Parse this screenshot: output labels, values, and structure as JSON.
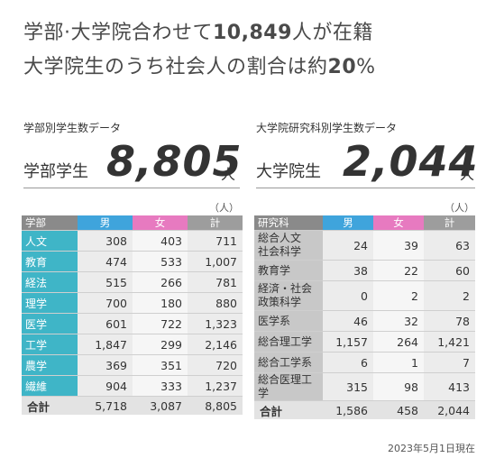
{
  "headline": {
    "line1_a": "学部·大学院合わせて",
    "line1_num": "10,849",
    "line1_b": "人が在籍",
    "line2_a": "大学院生のうち社会人の割合は約",
    "line2_num": "20",
    "line2_pct": "%"
  },
  "undergrad": {
    "title": "学部別学生数データ",
    "big_label": "学部学生",
    "big_number": "8,805",
    "big_unit": "人",
    "unit_note": "（人）",
    "headers": [
      "学部",
      "男",
      "女",
      "計"
    ],
    "rows": [
      {
        "name": "人文",
        "m": "308",
        "f": "403",
        "t": "711"
      },
      {
        "name": "教育",
        "m": "474",
        "f": "533",
        "t": "1,007"
      },
      {
        "name": "経法",
        "m": "515",
        "f": "266",
        "t": "781"
      },
      {
        "name": "理学",
        "m": "700",
        "f": "180",
        "t": "880"
      },
      {
        "name": "医学",
        "m": "601",
        "f": "722",
        "t": "1,323"
      },
      {
        "name": "工学",
        "m": "1,847",
        "f": "299",
        "t": "2,146"
      },
      {
        "name": "農学",
        "m": "369",
        "f": "351",
        "t": "720"
      },
      {
        "name": "繊維",
        "m": "904",
        "f": "333",
        "t": "1,237"
      }
    ],
    "total": {
      "name": "合計",
      "m": "5,718",
      "f": "3,087",
      "t": "8,805"
    }
  },
  "graduate": {
    "title": "大学院研究科別学生数データ",
    "big_label": "大学院生",
    "big_number": "2,044",
    "big_unit": "人",
    "unit_note": "（人）",
    "headers": [
      "研究科",
      "男",
      "女",
      "計"
    ],
    "rows": [
      {
        "name1": "総合人文",
        "name2": "社会科学",
        "m": "24",
        "f": "39",
        "t": "63"
      },
      {
        "name1": "教育学",
        "name2": "",
        "m": "38",
        "f": "22",
        "t": "60"
      },
      {
        "name1": "経済・社会",
        "name2": "政策科学",
        "m": "0",
        "f": "2",
        "t": "2"
      },
      {
        "name1": "医学系",
        "name2": "",
        "m": "46",
        "f": "32",
        "t": "78"
      },
      {
        "name1": "総合理工学",
        "name2": "",
        "m": "1,157",
        "f": "264",
        "t": "1,421"
      },
      {
        "name1": "総合工学系",
        "name2": "",
        "m": "6",
        "f": "1",
        "t": "7"
      },
      {
        "name1": "総合医理工学",
        "name2": "",
        "m": "315",
        "f": "98",
        "t": "413"
      }
    ],
    "total": {
      "name": "合計",
      "m": "1,586",
      "f": "458",
      "t": "2,044"
    }
  },
  "footnote": "2023年5月1日現在"
}
